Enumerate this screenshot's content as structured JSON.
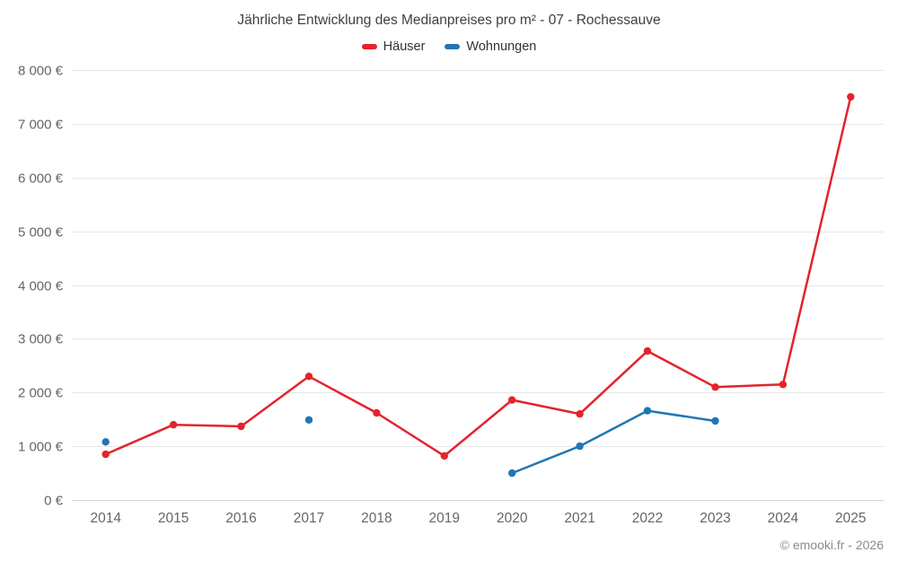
{
  "title": "Jährliche Entwicklung des Medianpreises pro m² - 07 - Rochessauve",
  "copyright": "© emooki.fr - 2026",
  "chart_data": {
    "type": "line",
    "x": [
      2014,
      2015,
      2016,
      2017,
      2018,
      2019,
      2020,
      2021,
      2022,
      2023,
      2024,
      2025
    ],
    "series": [
      {
        "name": "Häuser",
        "color": "#e3242b",
        "values": [
          850,
          1400,
          1370,
          2300,
          1620,
          820,
          1860,
          1600,
          2770,
          2100,
          2150,
          7500
        ]
      },
      {
        "name": "Wohnungen",
        "color": "#1f77b4",
        "values": [
          1080,
          null,
          null,
          1490,
          null,
          null,
          500,
          1000,
          1660,
          1470,
          null,
          null
        ]
      }
    ],
    "ylim": [
      0,
      8000
    ],
    "ytick_values": [
      0,
      1000,
      2000,
      3000,
      4000,
      5000,
      6000,
      7000,
      8000
    ],
    "ytick_labels": [
      "0 €",
      "1 000 €",
      "2 000 €",
      "3 000 €",
      "4 000 €",
      "5 000 €",
      "6 000 €",
      "7 000 €",
      "8 000 €"
    ],
    "grid": true,
    "legend_position": "top"
  }
}
